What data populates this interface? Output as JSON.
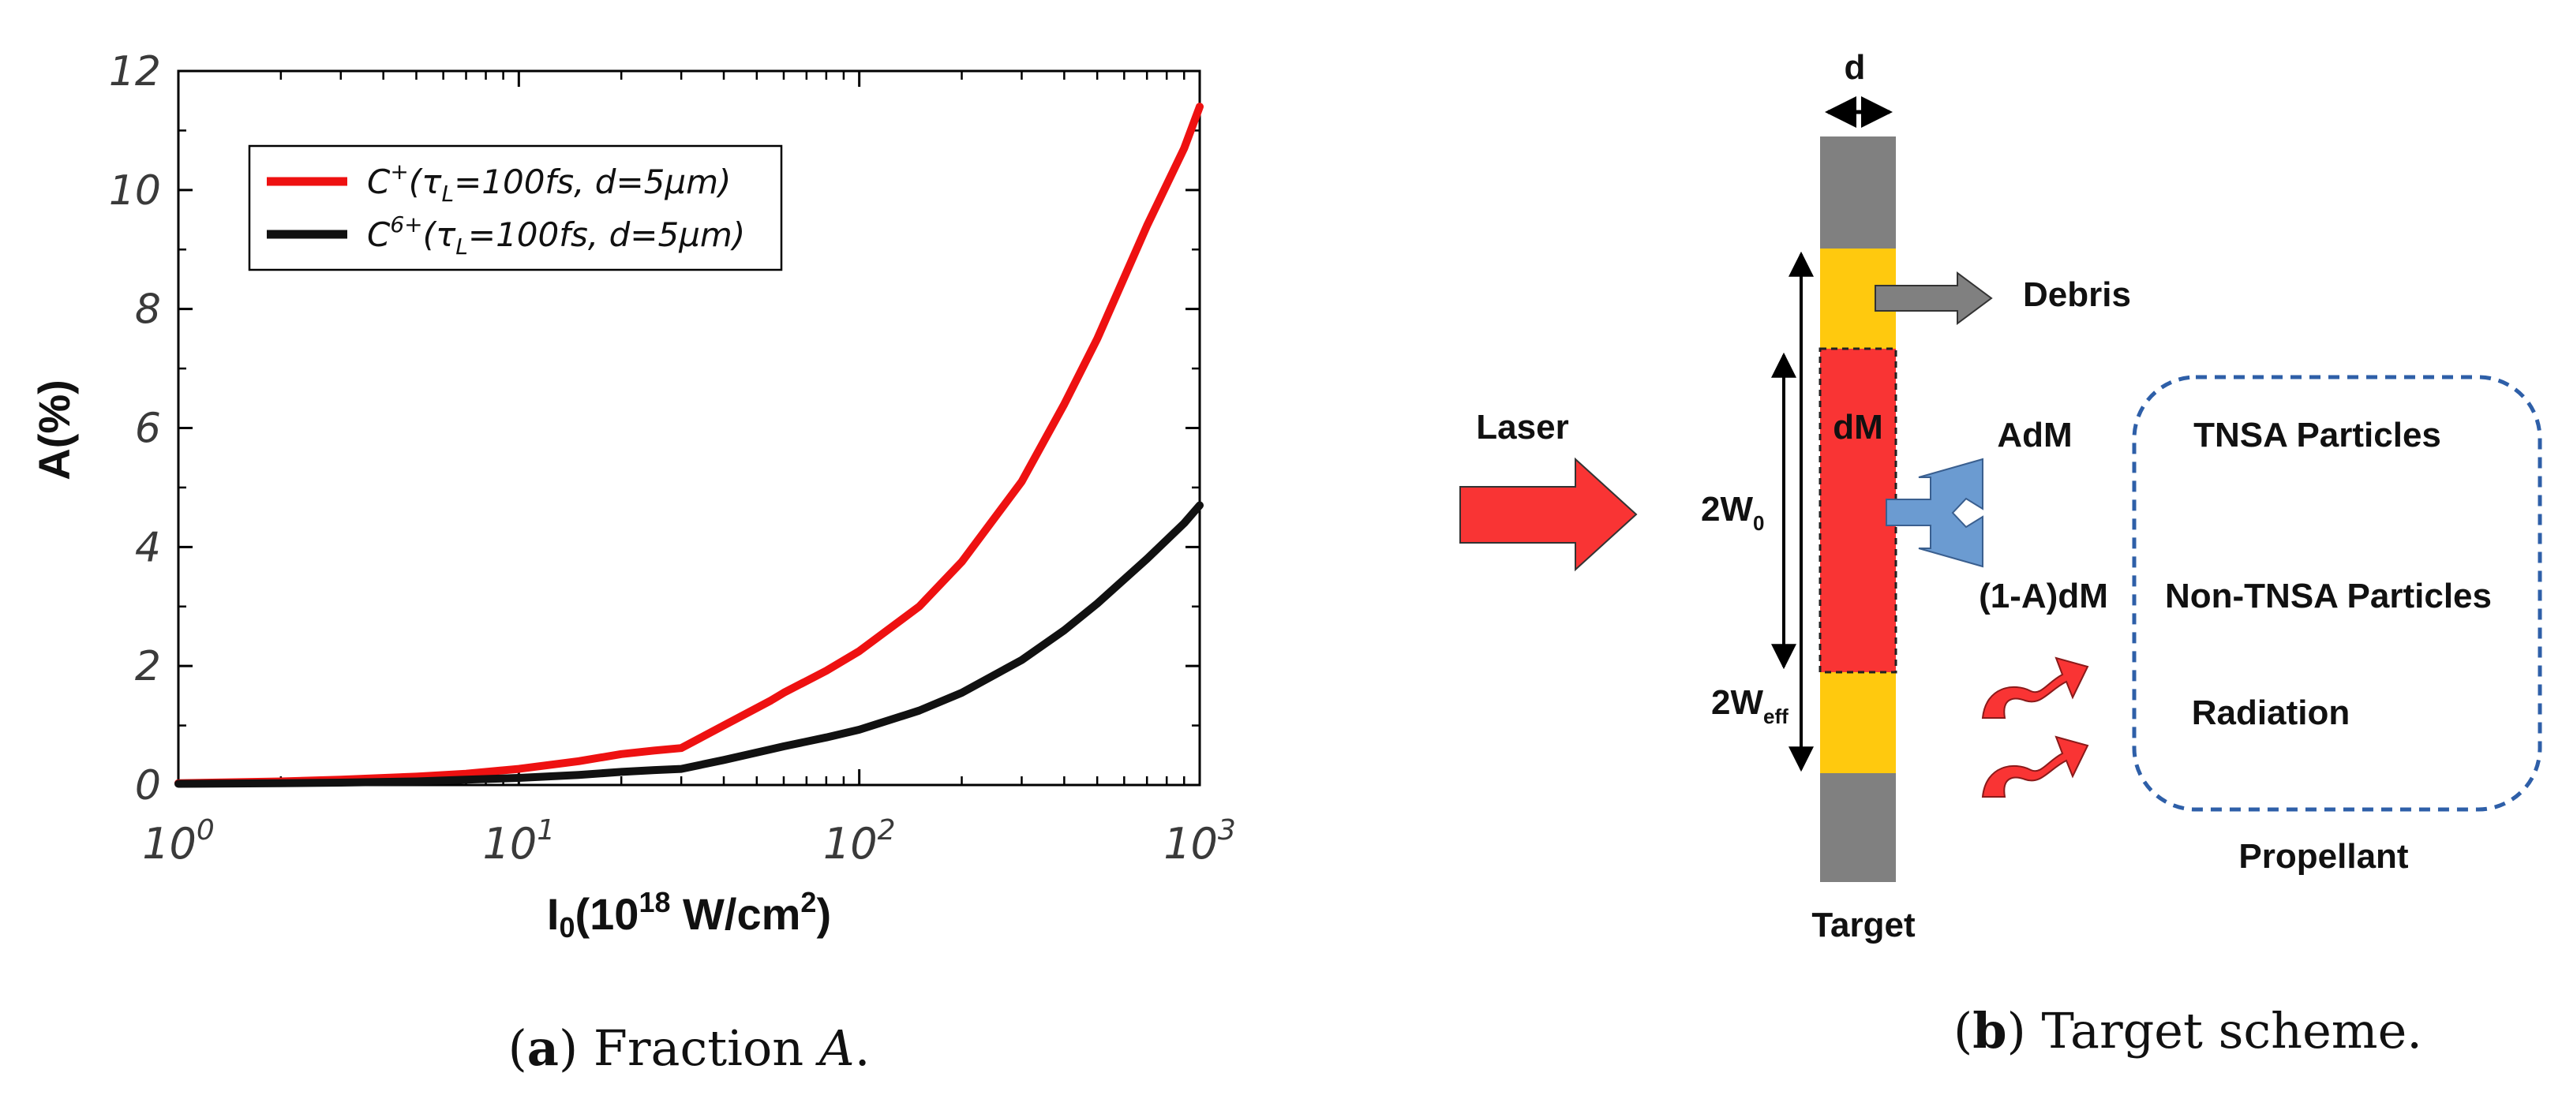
{
  "chart_data": {
    "type": "line",
    "xscale": "log",
    "xlabel": {
      "main": "I",
      "sub": "0",
      "open": "(10",
      "sup": "18",
      "unit": " W/cm",
      "unit_sup": "2",
      "close": ")"
    },
    "ylabel": "A(%)",
    "xlim": [
      1,
      1000
    ],
    "ylim": [
      0,
      12
    ],
    "yticks": [
      0,
      2,
      4,
      6,
      8,
      10,
      12
    ],
    "ytick_labels": [
      "0",
      "2",
      "4",
      "6",
      "8",
      "10",
      "12"
    ],
    "xticks": [
      {
        "value": 1,
        "base": "10",
        "exp": "0"
      },
      {
        "value": 10,
        "base": "10",
        "exp": "1"
      },
      {
        "value": 100,
        "base": "10",
        "exp": "2"
      },
      {
        "value": 1000,
        "base": "10",
        "exp": "3"
      }
    ],
    "series": [
      {
        "name": "C+(τL=100fs, d=5μm)",
        "legend": {
          "ion": "C",
          "charge": "+",
          "rest_a": "(τ",
          "sub": "L",
          "rest_b": "=100fs, d=5μm)"
        },
        "color": "#ee1111",
        "x": [
          1,
          2,
          3,
          5,
          7,
          10,
          15,
          20,
          25,
          30,
          40,
          55,
          60,
          80,
          100,
          150,
          200,
          300,
          400,
          500,
          700,
          900,
          1000
        ],
        "y": [
          0.03,
          0.06,
          0.09,
          0.14,
          0.19,
          0.27,
          0.4,
          0.52,
          0.58,
          0.62,
          1.0,
          1.42,
          1.55,
          1.92,
          2.25,
          3.0,
          3.75,
          5.1,
          6.4,
          7.5,
          9.4,
          10.7,
          11.4
        ]
      },
      {
        "name": "C6+(τL=100fs, d=5μm)",
        "legend": {
          "ion": "C",
          "charge": "6+",
          "rest_a": "(τ",
          "sub": "L",
          "rest_b": "=100fs, d=5μm)"
        },
        "color": "#111111",
        "x": [
          1,
          2,
          3,
          5,
          7,
          10,
          15,
          20,
          25,
          30,
          40,
          55,
          60,
          80,
          100,
          150,
          200,
          300,
          400,
          500,
          700,
          900,
          1000
        ],
        "y": [
          0.02,
          0.03,
          0.04,
          0.06,
          0.09,
          0.12,
          0.17,
          0.22,
          0.25,
          0.27,
          0.42,
          0.6,
          0.65,
          0.8,
          0.93,
          1.25,
          1.55,
          2.1,
          2.6,
          3.05,
          3.8,
          4.4,
          4.7
        ]
      }
    ]
  },
  "caption_a": {
    "letter": "a",
    "text": " Fraction ",
    "var": "A",
    "end": "."
  },
  "caption_b": {
    "letter": "b",
    "text": " Target scheme."
  },
  "scheme": {
    "d_label": "d",
    "debris": "Debris",
    "laser": "Laser",
    "dm": "dM",
    "adm": "AdM",
    "tnsa": "TNSA Particles",
    "w0_main": "2W",
    "w0_sub": "0",
    "one_minus_a": "(1-A)dM",
    "non_tnsa": "Non-TNSA Particles",
    "weff_main": "2W",
    "weff_sub": "eff",
    "radiation": "Radiation",
    "propellant": "Propellant",
    "target": "Target",
    "colors": {
      "target_gray": "#808080",
      "yellow": "#ffc90e",
      "red": "#f93434",
      "blue": "#6b9bd1",
      "dash_blue": "#2e5fa8"
    }
  }
}
